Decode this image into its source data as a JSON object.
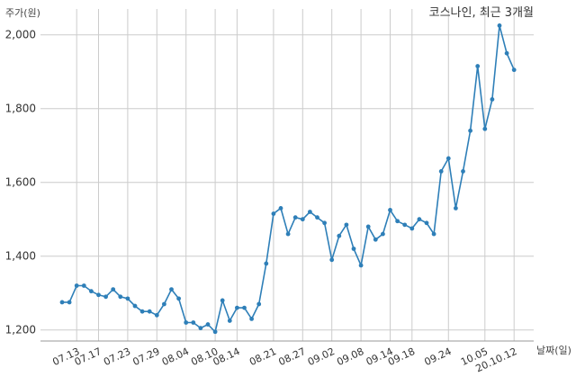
{
  "chart_data": {
    "type": "line",
    "title": "코스나인, 최근 3개월",
    "xlabel": "날짜(일)",
    "ylabel": "주가(원)",
    "ylim": [
      1170,
      2070
    ],
    "yticks": [
      1200,
      1400,
      1600,
      1800,
      2000
    ],
    "ytick_labels": [
      "1,200",
      "1,400",
      "1,600",
      "1,800",
      "2,000"
    ],
    "grid": true,
    "series_color": "#2e7fb8",
    "x_tick_labels": [
      "07.13",
      "07.17",
      "07.23",
      "07.29",
      "08.04",
      "08.10",
      "08.14",
      "08.21",
      "08.27",
      "09.02",
      "09.08",
      "09.14",
      "09.18",
      "09.24",
      "10.05",
      "20.10.12"
    ],
    "x_tick_index": [
      2,
      5,
      9,
      13,
      17,
      21,
      24,
      29,
      33,
      37,
      41,
      45,
      48,
      53,
      58,
      62
    ],
    "values": [
      1275,
      1275,
      1320,
      1320,
      1305,
      1295,
      1290,
      1310,
      1290,
      1285,
      1265,
      1250,
      1250,
      1240,
      1270,
      1310,
      1285,
      1220,
      1220,
      1205,
      1215,
      1195,
      1280,
      1225,
      1260,
      1260,
      1230,
      1270,
      1380,
      1515,
      1530,
      1460,
      1505,
      1500,
      1520,
      1505,
      1490,
      1390,
      1455,
      1485,
      1420,
      1375,
      1480,
      1445,
      1460,
      1525,
      1495,
      1485,
      1475,
      1500,
      1490,
      1460,
      1630,
      1665,
      1530,
      1630,
      1740,
      1915,
      1745,
      1825,
      2025,
      1950,
      1905
    ]
  }
}
